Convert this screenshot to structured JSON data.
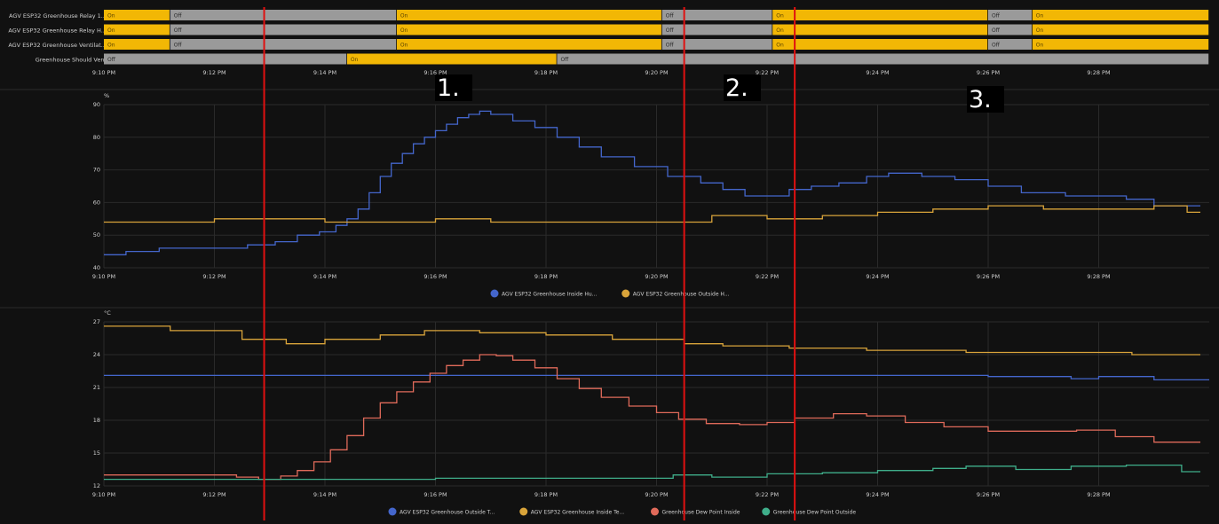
{
  "colors": {
    "background": "#111111",
    "grid": "#2a2a2a",
    "tick_text": "#cfcfcf",
    "on": "#f2b705",
    "off": "#9a9a9a",
    "marker": "#e01010",
    "marker_label_bg": "#000000",
    "marker_label_text": "#ffffff"
  },
  "time_ticks": [
    "9:10 PM",
    "9:12 PM",
    "9:14 PM",
    "9:16 PM",
    "9:18 PM",
    "9:20 PM",
    "9:22 PM",
    "9:24 PM",
    "9:26 PM",
    "9:28 PM"
  ],
  "markers": [
    {
      "label": "1.",
      "time": "21:12.9"
    },
    {
      "label": "2.",
      "time": "21:20.5"
    },
    {
      "label": "3.",
      "time": "21:22.5"
    }
  ],
  "chart_data": [
    {
      "type": "timeline",
      "x_range": [
        "9:10 PM",
        "9:30 PM"
      ],
      "rows": [
        {
          "name": "AGV ESP32 Greenhouse Relay 1...",
          "segments": [
            {
              "start": "9:10.0",
              "end": "9:11.2",
              "state": "On"
            },
            {
              "start": "9:11.2",
              "end": "9:15.3",
              "state": "Off"
            },
            {
              "start": "9:15.3",
              "end": "9:20.1",
              "state": "On"
            },
            {
              "start": "9:20.1",
              "end": "9:22.1",
              "state": "Off"
            },
            {
              "start": "9:22.1",
              "end": "9:26.0",
              "state": "On"
            },
            {
              "start": "9:26.0",
              "end": "9:26.8",
              "state": "Off"
            },
            {
              "start": "9:26.8",
              "end": "9:30.0",
              "state": "On"
            }
          ]
        },
        {
          "name": "AGV ESP32 Greenhouse Relay H...",
          "segments": [
            {
              "start": "9:10.0",
              "end": "9:11.2",
              "state": "On"
            },
            {
              "start": "9:11.2",
              "end": "9:15.3",
              "state": "Off"
            },
            {
              "start": "9:15.3",
              "end": "9:20.1",
              "state": "On"
            },
            {
              "start": "9:20.1",
              "end": "9:22.1",
              "state": "Off"
            },
            {
              "start": "9:22.1",
              "end": "9:26.0",
              "state": "On"
            },
            {
              "start": "9:26.0",
              "end": "9:26.8",
              "state": "Off"
            },
            {
              "start": "9:26.8",
              "end": "9:30.0",
              "state": "On"
            }
          ]
        },
        {
          "name": "AGV ESP32 Greenhouse Ventilat...",
          "segments": [
            {
              "start": "9:10.0",
              "end": "9:11.2",
              "state": "On"
            },
            {
              "start": "9:11.2",
              "end": "9:15.3",
              "state": "Off"
            },
            {
              "start": "9:15.3",
              "end": "9:20.1",
              "state": "On"
            },
            {
              "start": "9:20.1",
              "end": "9:22.1",
              "state": "Off"
            },
            {
              "start": "9:22.1",
              "end": "9:26.0",
              "state": "On"
            },
            {
              "start": "9:26.0",
              "end": "9:26.8",
              "state": "Off"
            },
            {
              "start": "9:26.8",
              "end": "9:30.0",
              "state": "On"
            }
          ]
        },
        {
          "name": "Greenhouse Should Vent",
          "segments": [
            {
              "start": "9:10.0",
              "end": "9:14.4",
              "state": "Off"
            },
            {
              "start": "9:14.4",
              "end": "9:18.2",
              "state": "On"
            },
            {
              "start": "9:18.2",
              "end": "9:30.0",
              "state": "Off"
            }
          ]
        }
      ]
    },
    {
      "type": "line",
      "step": true,
      "unit": "%",
      "ylim": [
        40,
        90
      ],
      "yticks": [
        40,
        50,
        60,
        70,
        80,
        90
      ],
      "x_range": [
        "9:10 PM",
        "9:30 PM"
      ],
      "series": [
        {
          "name": "AGV ESP32 Greenhouse Inside Hu...",
          "color": "#4466cc",
          "x": [
            "9:10.0",
            "9:10.4",
            "9:11.0",
            "9:12.0",
            "9:12.6",
            "9:13.1",
            "9:13.5",
            "9:13.9",
            "9:14.2",
            "9:14.4",
            "9:14.6",
            "9:14.8",
            "9:15.0",
            "9:15.2",
            "9:15.4",
            "9:15.6",
            "9:15.8",
            "9:16.0",
            "9:16.2",
            "9:16.4",
            "9:16.6",
            "9:16.8",
            "9:17.0",
            "9:17.4",
            "9:17.8",
            "9:18.2",
            "9:18.6",
            "9:19.0",
            "9:19.6",
            "9:20.2",
            "9:20.8",
            "9:21.2",
            "9:21.6",
            "9:22.0",
            "9:22.4",
            "9:22.8",
            "9:23.3",
            "9:23.8",
            "9:24.2",
            "9:24.8",
            "9:25.4",
            "9:26.0",
            "9:26.6",
            "9:27.4",
            "9:28.0",
            "9:28.5",
            "9:29.0"
          ],
          "y": [
            44,
            45,
            46,
            46,
            47,
            48,
            50,
            51,
            53,
            55,
            58,
            63,
            68,
            72,
            75,
            78,
            80,
            82,
            84,
            86,
            87,
            88,
            87,
            85,
            83,
            80,
            77,
            74,
            71,
            68,
            66,
            64,
            62,
            62,
            64,
            65,
            66,
            68,
            69,
            68,
            67,
            65,
            63,
            62,
            62,
            61,
            59
          ]
        },
        {
          "name": "AGV ESP32 Greenhouse Outside H...",
          "color": "#d9a43a",
          "x": [
            "9:10.0",
            "9:11.0",
            "9:12.0",
            "9:13.0",
            "9:14.0",
            "9:15.0",
            "9:16.0",
            "9:17.0",
            "9:18.0",
            "9:19.0",
            "9:20.0",
            "9:21.0",
            "9:22.0",
            "9:23.0",
            "9:24.0",
            "9:25.0",
            "9:26.0",
            "9:27.0",
            "9:28.0",
            "9:29.0",
            "9:29.6"
          ],
          "y": [
            54,
            54,
            55,
            55,
            54,
            54,
            55,
            54,
            54,
            54,
            54,
            56,
            55,
            56,
            57,
            58,
            59,
            58,
            58,
            59,
            57
          ]
        }
      ]
    },
    {
      "type": "line",
      "step": true,
      "unit": "°C",
      "ylim": [
        12,
        27
      ],
      "yticks": [
        12,
        15,
        18,
        21,
        24,
        27
      ],
      "x_range": [
        "9:10 PM",
        "9:30 PM"
      ],
      "series": [
        {
          "name": "AGV ESP32 Greenhouse Outside T...",
          "color": "#4466cc",
          "x": [
            "9:10.0",
            "9:12.0",
            "9:14.0",
            "9:16.0",
            "9:18.0",
            "9:20.0",
            "9:22.0",
            "9:24.0",
            "9:26.0",
            "9:27.5",
            "9:28.0",
            "9:29.0",
            "9:30.0"
          ],
          "y": [
            22.1,
            22.1,
            22.1,
            22.1,
            22.1,
            22.1,
            22.1,
            22.1,
            22.0,
            21.8,
            22.0,
            21.7,
            21.7
          ]
        },
        {
          "name": "AGV ESP32 Greenhouse Inside Te...",
          "color": "#d9a43a",
          "x": [
            "9:10.0",
            "9:11.2",
            "9:12.5",
            "9:13.3",
            "9:14.0",
            "9:15.0",
            "9:15.8",
            "9:16.8",
            "9:18.0",
            "9:19.2",
            "9:20.5",
            "9:21.2",
            "9:22.4",
            "9:23.8",
            "9:25.6",
            "9:26.8",
            "9:28.6",
            "9:29.6"
          ],
          "y": [
            26.6,
            26.2,
            25.4,
            25.0,
            25.4,
            25.8,
            26.2,
            26.0,
            25.8,
            25.4,
            25.0,
            24.8,
            24.6,
            24.4,
            24.2,
            24.2,
            24.0,
            24.0
          ]
        },
        {
          "name": "Greenhouse Dew Point Inside",
          "color": "#e06a5a",
          "x": [
            "9:10.0",
            "9:11.0",
            "9:12.4",
            "9:12.8",
            "9:13.2",
            "9:13.5",
            "9:13.8",
            "9:14.1",
            "9:14.4",
            "9:14.7",
            "9:15.0",
            "9:15.3",
            "9:15.6",
            "9:15.9",
            "9:16.2",
            "9:16.5",
            "9:16.8",
            "9:17.1",
            "9:17.4",
            "9:17.8",
            "9:18.2",
            "9:18.6",
            "9:19.0",
            "9:19.5",
            "9:20.0",
            "9:20.4",
            "9:20.9",
            "9:21.5",
            "9:22.0",
            "9:22.5",
            "9:23.2",
            "9:23.8",
            "9:24.5",
            "9:25.2",
            "9:26.0",
            "9:26.8",
            "9:27.6",
            "9:28.3",
            "9:29.0"
          ],
          "y": [
            13.0,
            13.0,
            12.8,
            12.6,
            12.9,
            13.4,
            14.2,
            15.3,
            16.6,
            18.2,
            19.6,
            20.6,
            21.5,
            22.3,
            23.0,
            23.5,
            24.0,
            23.9,
            23.5,
            22.8,
            21.8,
            20.9,
            20.1,
            19.3,
            18.7,
            18.1,
            17.7,
            17.6,
            17.8,
            18.2,
            18.6,
            18.4,
            17.8,
            17.4,
            17.0,
            17.0,
            17.1,
            16.5,
            16.0
          ]
        },
        {
          "name": "Greenhouse Dew Point Outside",
          "color": "#3fae8a",
          "x": [
            "9:10.0",
            "9:12.0",
            "9:14.0",
            "9:16.0",
            "9:18.0",
            "9:20.0",
            "9:20.3",
            "9:21.0",
            "9:22.0",
            "9:23.0",
            "9:24.0",
            "9:25.0",
            "9:25.6",
            "9:26.5",
            "9:27.5",
            "9:28.5",
            "9:29.5"
          ],
          "y": [
            12.6,
            12.6,
            12.6,
            12.7,
            12.7,
            12.7,
            13.0,
            12.8,
            13.1,
            13.2,
            13.4,
            13.6,
            13.8,
            13.5,
            13.8,
            13.9,
            13.3
          ]
        }
      ]
    }
  ]
}
